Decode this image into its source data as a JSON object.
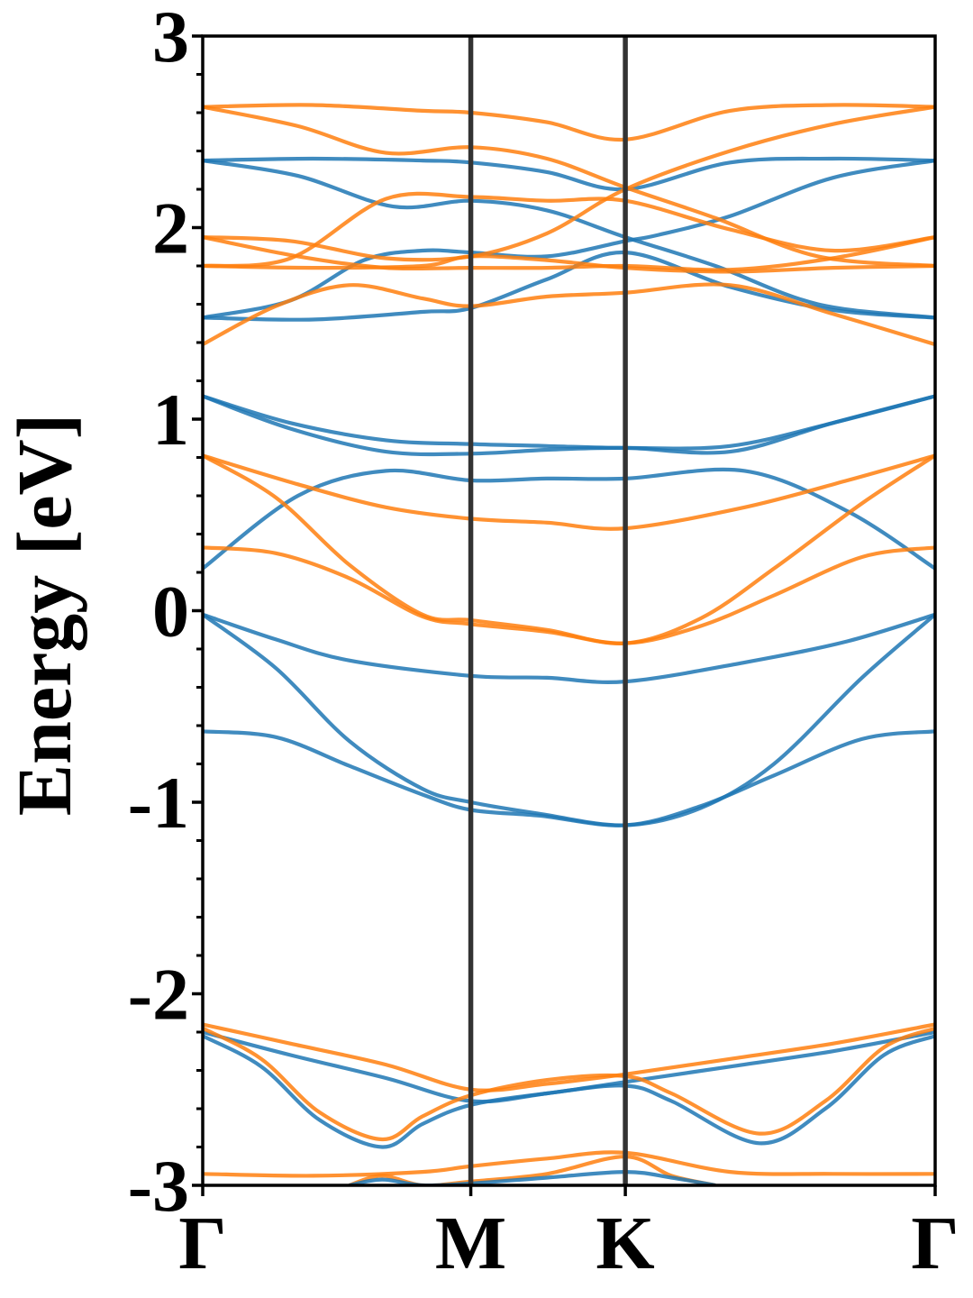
{
  "chart_data": {
    "type": "line",
    "title": "",
    "xlabel": "",
    "ylabel": "Energy [eV]",
    "ylim": [
      -3,
      3
    ],
    "yticks": [
      -3,
      -2,
      -1,
      0,
      1,
      2,
      3
    ],
    "ytick_labels": [
      "-3",
      "-2",
      "-1",
      "0",
      "1",
      "2",
      "3"
    ],
    "x_domain": [
      0,
      1
    ],
    "kpoints": [
      {
        "label": "Γ",
        "x": 0.0
      },
      {
        "label": "M",
        "x": 0.366
      },
      {
        "label": "K",
        "x": 0.577
      },
      {
        "label": "Γ",
        "x": 1.0
      }
    ],
    "grid": false,
    "legend": "none",
    "colors": {
      "spin_up": "#1f77b4",
      "spin_down": "#ff7f0e",
      "kpath_line": "#333333"
    },
    "series": [
      {
        "color": "spin_up",
        "points": [
          [
            0,
            1.12
          ],
          [
            0.12,
            0.95
          ],
          [
            0.25,
            0.83
          ],
          [
            0.366,
            0.82
          ],
          [
            0.47,
            0.84
          ],
          [
            0.577,
            0.85
          ],
          [
            0.72,
            0.83
          ],
          [
            0.86,
            0.98
          ],
          [
            1,
            1.12
          ]
        ]
      },
      {
        "color": "spin_up",
        "points": [
          [
            0,
            1.12
          ],
          [
            0.12,
            0.98
          ],
          [
            0.25,
            0.89
          ],
          [
            0.366,
            0.87
          ],
          [
            0.47,
            0.86
          ],
          [
            0.577,
            0.85
          ],
          [
            0.72,
            0.86
          ],
          [
            0.86,
            0.98
          ],
          [
            1,
            1.12
          ]
        ]
      },
      {
        "color": "spin_up",
        "points": [
          [
            0,
            0.22
          ],
          [
            0.13,
            0.6
          ],
          [
            0.25,
            0.73
          ],
          [
            0.366,
            0.68
          ],
          [
            0.47,
            0.69
          ],
          [
            0.577,
            0.69
          ],
          [
            0.74,
            0.73
          ],
          [
            0.88,
            0.52
          ],
          [
            1,
            0.22
          ]
        ]
      },
      {
        "color": "spin_up",
        "points": [
          [
            0,
            -0.02
          ],
          [
            0.1,
            -0.15
          ],
          [
            0.2,
            -0.26
          ],
          [
            0.366,
            -0.34
          ],
          [
            0.47,
            -0.35
          ],
          [
            0.577,
            -0.37
          ],
          [
            0.74,
            -0.27
          ],
          [
            0.88,
            -0.16
          ],
          [
            1,
            -0.02
          ]
        ]
      },
      {
        "color": "spin_up",
        "points": [
          [
            0,
            -0.02
          ],
          [
            0.1,
            -0.3
          ],
          [
            0.2,
            -0.68
          ],
          [
            0.3,
            -0.93
          ],
          [
            0.366,
            -1.0
          ],
          [
            0.46,
            -1.06
          ],
          [
            0.577,
            -1.12
          ],
          [
            0.68,
            -1.03
          ],
          [
            0.78,
            -0.8
          ],
          [
            0.9,
            -0.35
          ],
          [
            1,
            -0.02
          ]
        ]
      },
      {
        "color": "spin_up",
        "points": [
          [
            0,
            -0.63
          ],
          [
            0.1,
            -0.66
          ],
          [
            0.2,
            -0.81
          ],
          [
            0.3,
            -0.96
          ],
          [
            0.366,
            -1.04
          ],
          [
            0.46,
            -1.07
          ],
          [
            0.577,
            -1.12
          ],
          [
            0.68,
            -1.02
          ],
          [
            0.78,
            -0.86
          ],
          [
            0.9,
            -0.67
          ],
          [
            1,
            -0.63
          ]
        ]
      },
      {
        "color": "spin_up",
        "points": [
          [
            0,
            2.35
          ],
          [
            0.15,
            2.36
          ],
          [
            0.3,
            2.35
          ],
          [
            0.366,
            2.34
          ],
          [
            0.47,
            2.29
          ],
          [
            0.577,
            2.2
          ],
          [
            0.72,
            2.34
          ],
          [
            0.86,
            2.36
          ],
          [
            1,
            2.35
          ]
        ]
      },
      {
        "color": "spin_up",
        "points": [
          [
            0,
            2.35
          ],
          [
            0.13,
            2.27
          ],
          [
            0.26,
            2.11
          ],
          [
            0.366,
            2.14
          ],
          [
            0.47,
            2.09
          ],
          [
            0.577,
            1.95
          ],
          [
            0.7,
            1.8
          ],
          [
            0.84,
            1.6
          ],
          [
            1,
            1.53
          ]
        ]
      },
      {
        "color": "spin_up",
        "points": [
          [
            0,
            1.53
          ],
          [
            0.12,
            1.62
          ],
          [
            0.22,
            1.83
          ],
          [
            0.3,
            1.88
          ],
          [
            0.366,
            1.87
          ],
          [
            0.47,
            1.85
          ],
          [
            0.577,
            1.93
          ],
          [
            0.62,
            1.96
          ],
          [
            0.72,
            2.06
          ],
          [
            0.86,
            2.26
          ],
          [
            1,
            2.35
          ]
        ]
      },
      {
        "color": "spin_up",
        "points": [
          [
            0,
            1.53
          ],
          [
            0.15,
            1.52
          ],
          [
            0.3,
            1.56
          ],
          [
            0.366,
            1.58
          ],
          [
            0.47,
            1.73
          ],
          [
            0.577,
            1.87
          ],
          [
            0.72,
            1.69
          ],
          [
            0.86,
            1.57
          ],
          [
            1,
            1.53
          ]
        ]
      },
      {
        "color": "spin_up",
        "points": [
          [
            0,
            -2.2
          ],
          [
            0.12,
            -2.32
          ],
          [
            0.25,
            -2.44
          ],
          [
            0.366,
            -2.56
          ],
          [
            0.47,
            -2.52
          ],
          [
            0.577,
            -2.46
          ],
          [
            0.72,
            -2.38
          ],
          [
            0.86,
            -2.3
          ],
          [
            1,
            -2.2
          ]
        ]
      },
      {
        "color": "spin_up",
        "points": [
          [
            0,
            -2.22
          ],
          [
            0.08,
            -2.38
          ],
          [
            0.16,
            -2.66
          ],
          [
            0.245,
            -2.8
          ],
          [
            0.3,
            -2.68
          ],
          [
            0.366,
            -2.58
          ],
          [
            0.47,
            -2.52
          ],
          [
            0.577,
            -2.48
          ],
          [
            0.64,
            -2.56
          ],
          [
            0.76,
            -2.78
          ],
          [
            0.85,
            -2.6
          ],
          [
            0.93,
            -2.32
          ],
          [
            1,
            -2.22
          ]
        ]
      },
      {
        "color": "spin_down",
        "points": [
          [
            0,
            2.63
          ],
          [
            0.15,
            2.64
          ],
          [
            0.3,
            2.61
          ],
          [
            0.366,
            2.6
          ],
          [
            0.47,
            2.55
          ],
          [
            0.577,
            2.46
          ],
          [
            0.72,
            2.61
          ],
          [
            0.86,
            2.64
          ],
          [
            1,
            2.63
          ]
        ]
      },
      {
        "color": "spin_down",
        "points": [
          [
            0,
            2.63
          ],
          [
            0.13,
            2.53
          ],
          [
            0.25,
            2.39
          ],
          [
            0.366,
            2.42
          ],
          [
            0.47,
            2.36
          ],
          [
            0.577,
            2.21
          ],
          [
            0.7,
            2.05
          ],
          [
            0.84,
            1.85
          ],
          [
            1,
            1.8
          ]
        ]
      },
      {
        "color": "spin_down",
        "points": [
          [
            0,
            1.95
          ],
          [
            0.12,
            1.93
          ],
          [
            0.25,
            1.84
          ],
          [
            0.366,
            1.85
          ],
          [
            0.47,
            1.97
          ],
          [
            0.577,
            2.2
          ],
          [
            0.72,
            2.4
          ],
          [
            0.86,
            2.54
          ],
          [
            1,
            2.63
          ]
        ]
      },
      {
        "color": "spin_down",
        "points": [
          [
            0,
            1.8
          ],
          [
            0.12,
            1.84
          ],
          [
            0.25,
            2.15
          ],
          [
            0.366,
            2.16
          ],
          [
            0.47,
            2.14
          ],
          [
            0.577,
            2.14
          ],
          [
            0.72,
            1.99
          ],
          [
            0.86,
            1.88
          ],
          [
            1,
            1.95
          ]
        ]
      },
      {
        "color": "spin_down",
        "points": [
          [
            0,
            1.95
          ],
          [
            0.13,
            1.85
          ],
          [
            0.25,
            1.79
          ],
          [
            0.366,
            1.79
          ],
          [
            0.47,
            1.79
          ],
          [
            0.577,
            1.8
          ],
          [
            0.72,
            1.78
          ],
          [
            0.86,
            1.84
          ],
          [
            1,
            1.95
          ]
        ]
      },
      {
        "color": "spin_down",
        "points": [
          [
            0,
            1.8
          ],
          [
            0.15,
            1.79
          ],
          [
            0.3,
            1.8
          ],
          [
            0.366,
            1.85
          ],
          [
            0.47,
            1.83
          ],
          [
            0.577,
            1.79
          ],
          [
            0.72,
            1.77
          ],
          [
            0.86,
            1.79
          ],
          [
            1,
            1.8
          ]
        ]
      },
      {
        "color": "spin_down",
        "points": [
          [
            0,
            1.39
          ],
          [
            0.1,
            1.59
          ],
          [
            0.2,
            1.7
          ],
          [
            0.3,
            1.63
          ],
          [
            0.366,
            1.59
          ],
          [
            0.47,
            1.64
          ],
          [
            0.577,
            1.66
          ],
          [
            0.72,
            1.7
          ],
          [
            0.86,
            1.55
          ],
          [
            1,
            1.39
          ]
        ]
      },
      {
        "color": "spin_down",
        "points": [
          [
            0,
            0.81
          ],
          [
            0.13,
            0.66
          ],
          [
            0.25,
            0.54
          ],
          [
            0.366,
            0.48
          ],
          [
            0.47,
            0.46
          ],
          [
            0.577,
            0.43
          ],
          [
            0.74,
            0.54
          ],
          [
            0.88,
            0.68
          ],
          [
            1,
            0.81
          ]
        ]
      },
      {
        "color": "spin_down",
        "points": [
          [
            0,
            0.81
          ],
          [
            0.1,
            0.59
          ],
          [
            0.2,
            0.24
          ],
          [
            0.3,
            -0.02
          ],
          [
            0.366,
            -0.05
          ],
          [
            0.47,
            -0.1
          ],
          [
            0.577,
            -0.17
          ],
          [
            0.68,
            -0.04
          ],
          [
            0.78,
            0.22
          ],
          [
            0.9,
            0.56
          ],
          [
            1,
            0.81
          ]
        ]
      },
      {
        "color": "spin_down",
        "points": [
          [
            0,
            0.33
          ],
          [
            0.1,
            0.3
          ],
          [
            0.2,
            0.17
          ],
          [
            0.3,
            -0.03
          ],
          [
            0.366,
            -0.07
          ],
          [
            0.47,
            -0.11
          ],
          [
            0.577,
            -0.17
          ],
          [
            0.68,
            -0.08
          ],
          [
            0.78,
            0.08
          ],
          [
            0.9,
            0.28
          ],
          [
            1,
            0.33
          ]
        ]
      },
      {
        "color": "spin_down",
        "points": [
          [
            0,
            -2.16
          ],
          [
            0.12,
            -2.26
          ],
          [
            0.25,
            -2.37
          ],
          [
            0.366,
            -2.5
          ],
          [
            0.47,
            -2.47
          ],
          [
            0.577,
            -2.42
          ],
          [
            0.72,
            -2.34
          ],
          [
            0.86,
            -2.26
          ],
          [
            1,
            -2.16
          ]
        ]
      },
      {
        "color": "spin_down",
        "points": [
          [
            0,
            -2.18
          ],
          [
            0.08,
            -2.34
          ],
          [
            0.16,
            -2.62
          ],
          [
            0.245,
            -2.76
          ],
          [
            0.3,
            -2.64
          ],
          [
            0.366,
            -2.53
          ],
          [
            0.47,
            -2.45
          ],
          [
            0.577,
            -2.43
          ],
          [
            0.64,
            -2.52
          ],
          [
            0.76,
            -2.73
          ],
          [
            0.85,
            -2.56
          ],
          [
            0.93,
            -2.28
          ],
          [
            1,
            -2.18
          ]
        ]
      },
      {
        "color": "spin_down",
        "points": [
          [
            0,
            -2.94
          ],
          [
            0.15,
            -2.95
          ],
          [
            0.3,
            -2.93
          ],
          [
            0.366,
            -2.9
          ],
          [
            0.47,
            -2.86
          ],
          [
            0.577,
            -2.83
          ],
          [
            0.72,
            -2.93
          ],
          [
            0.86,
            -2.94
          ],
          [
            1,
            -2.94
          ]
        ]
      },
      {
        "color": "spin_down",
        "points": [
          [
            0.2,
            -3.0
          ],
          [
            0.245,
            -2.95
          ],
          [
            0.3,
            -3.0
          ],
          [
            0.366,
            -2.98
          ],
          [
            0.47,
            -2.94
          ],
          [
            0.577,
            -2.85
          ],
          [
            0.64,
            -2.95
          ],
          [
            0.7,
            -3.0
          ]
        ]
      },
      {
        "color": "spin_up",
        "points": [
          [
            0.2,
            -3.0
          ],
          [
            0.245,
            -2.97
          ],
          [
            0.3,
            -3.0
          ],
          [
            0.366,
            -2.99
          ],
          [
            0.47,
            -2.96
          ],
          [
            0.577,
            -2.93
          ],
          [
            0.64,
            -2.96
          ],
          [
            0.7,
            -3.0
          ]
        ]
      }
    ]
  }
}
